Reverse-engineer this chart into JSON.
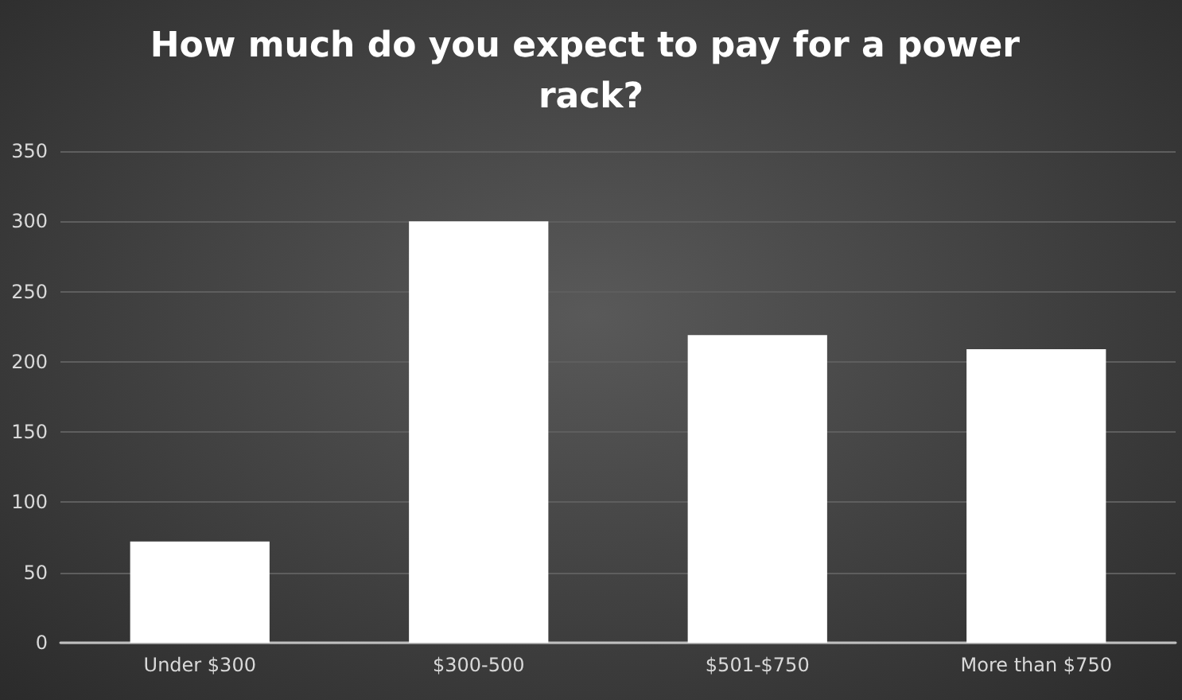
{
  "chart_data": {
    "type": "bar",
    "title": "How much do you expect to pay for a power rack?",
    "categories": [
      "Under $300",
      "$300-500",
      "$501-$750",
      "More than $750"
    ],
    "values": [
      72,
      300,
      219,
      209
    ],
    "color": "#ffffff",
    "ylim": [
      0,
      350
    ],
    "yticks": [
      0,
      50,
      100,
      150,
      200,
      250,
      300,
      350
    ],
    "grid": "y"
  }
}
